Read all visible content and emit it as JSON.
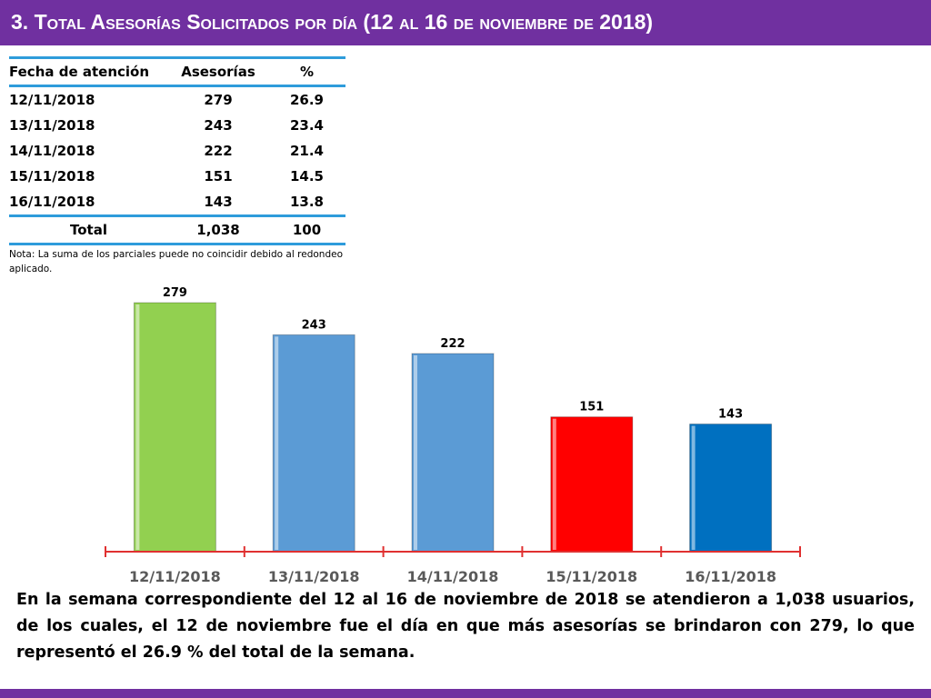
{
  "header": {
    "title": "3.  Total Asesorías Solicitados por día  (12 al 16 de noviembre de 2018)"
  },
  "table": {
    "headers": [
      "Fecha de atención",
      "Asesorías",
      "%"
    ],
    "rows": [
      [
        "12/11/2018",
        "279",
        "26.9"
      ],
      [
        "13/11/2018",
        "243",
        "23.4"
      ],
      [
        "14/11/2018",
        "222",
        "21.4"
      ],
      [
        "15/11/2018",
        "151",
        "14.5"
      ],
      [
        "16/11/2018",
        "143",
        "13.8"
      ]
    ],
    "total": [
      "Total",
      "1,038",
      "100"
    ]
  },
  "note": "Nota: La suma de los parciales puede no coincidir debido al redondeo aplicado.",
  "chart_data": {
    "type": "bar",
    "categories": [
      "12/11/2018",
      "13/11/2018",
      "14/11/2018",
      "15/11/2018",
      "16/11/2018"
    ],
    "values": [
      279,
      243,
      222,
      151,
      143
    ],
    "data_labels": [
      "279",
      "243",
      "222",
      "151",
      "143"
    ],
    "ylim": [
      0,
      279
    ],
    "grid": false,
    "legend": "none",
    "colors": [
      "#92d050",
      "#5b9bd5",
      "#5b9bd5",
      "#ff0000",
      "#0070c0"
    ],
    "axis_color": "#e03030"
  },
  "summary": "En la semana correspondiente del 12 al 16 de noviembre de 2018 se atendieron a 1,038 usuarios, de los cuales, el 12 de noviembre fue el día en que más asesorías se brindaron con 279, lo que representó el 26.9 % del total de la semana.",
  "colors": {
    "header_bg": "#7030a0",
    "table_rule": "#2e9cdb"
  }
}
